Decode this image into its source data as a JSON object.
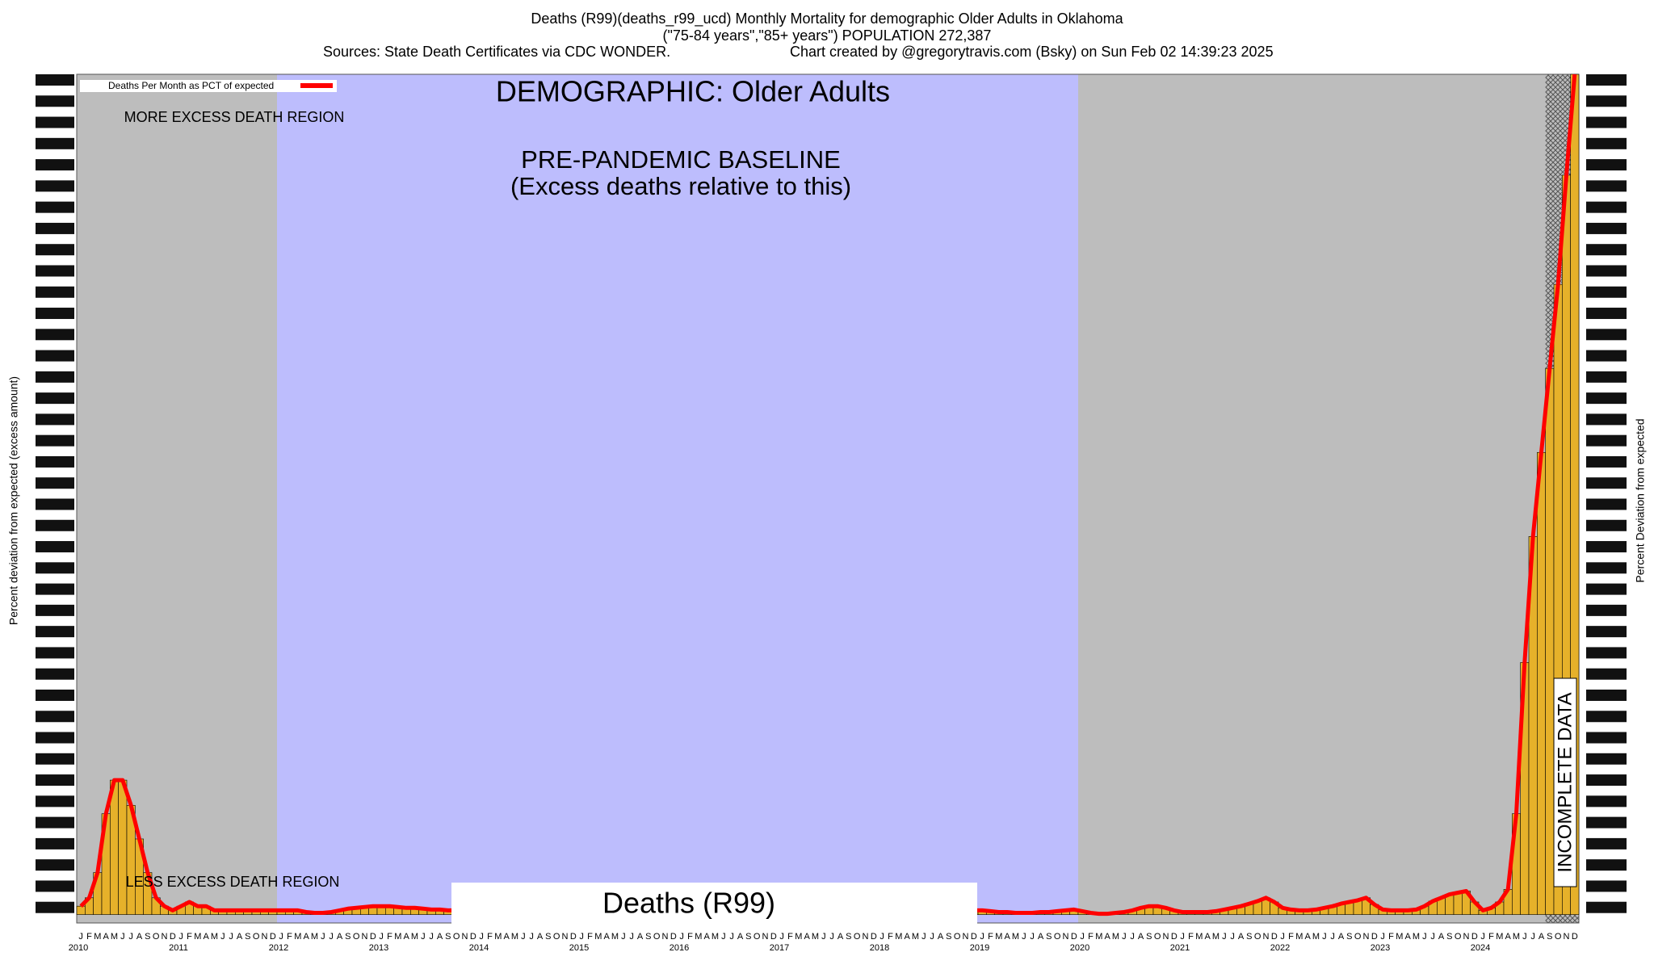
{
  "chart_data": {
    "type": "bar",
    "title": "Deaths (R99)(deaths_r99_ucd) Monthly Mortality for demographic Older Adults in Oklahoma",
    "subtitle": "(\"75-84 years\",\"85+ years\") POPULATION 272,387",
    "sources": "Sources: State Death Certificates via CDC WONDER.",
    "credit": "Chart created by @gregorytravis.com (Bsky) on Sun Feb 02 14:39:23 2025",
    "demographic": "DEMOGRAPHIC: Older Adults",
    "more_region": "MORE EXCESS DEATH REGION",
    "less_region": "LESS EXCESS DEATH REGION",
    "baseline_title": "PRE-PANDEMIC BASELINE",
    "baseline_note": "(Excess deaths relative to this)",
    "cause": "Deaths (R99)",
    "incomplete": "INCOMPLETE DATA",
    "y_label": "Percent deviation from expected (excess amount)",
    "y2_label": "Percent Deviation from expected",
    "year_labels": [
      "2010",
      "2011",
      "2012",
      "2013",
      "2014",
      "2015",
      "2016",
      "2017",
      "2018",
      "2019",
      "2020",
      "2021",
      "2022",
      "2023",
      "2024"
    ],
    "categories": [
      "J",
      "F",
      "M",
      "A",
      "M",
      "J",
      "J",
      "A",
      "S",
      "O",
      "N",
      "D",
      "J",
      "F",
      "M",
      "A",
      "M",
      "J",
      "J",
      "A",
      "S",
      "O",
      "N",
      "D",
      "J",
      "F",
      "M",
      "A",
      "M",
      "J",
      "J",
      "A",
      "S",
      "O",
      "N",
      "D",
      "J",
      "F",
      "M",
      "A",
      "M",
      "J",
      "J",
      "A",
      "S",
      "O",
      "N",
      "D",
      "J",
      "F",
      "M",
      "A",
      "M",
      "J",
      "J",
      "A",
      "S",
      "O",
      "N",
      "D",
      "J",
      "F",
      "M",
      "A",
      "M",
      "J",
      "J",
      "A",
      "S",
      "O",
      "N",
      "D",
      "J",
      "F",
      "M",
      "A",
      "M",
      "J",
      "J",
      "A",
      "S",
      "O",
      "N",
      "D",
      "J",
      "F",
      "M",
      "A",
      "M",
      "J",
      "J",
      "A",
      "S",
      "O",
      "N",
      "D",
      "J",
      "F",
      "M",
      "A",
      "M",
      "J",
      "J",
      "A",
      "S",
      "O",
      "N",
      "D",
      "J",
      "F",
      "M",
      "A",
      "M",
      "J",
      "J",
      "A",
      "S",
      "O",
      "N",
      "D",
      "J",
      "F",
      "M",
      "A",
      "M",
      "J",
      "J",
      "A",
      "S",
      "O",
      "N",
      "D",
      "J",
      "F",
      "M",
      "A",
      "M",
      "J",
      "J",
      "A",
      "S",
      "O",
      "N",
      "D",
      "J",
      "F",
      "M",
      "A",
      "M",
      "J",
      "J",
      "A",
      "S",
      "O",
      "N",
      "D",
      "J",
      "F",
      "M",
      "A",
      "M",
      "J",
      "J",
      "A",
      "S",
      "O",
      "N",
      "D",
      "J",
      "F",
      "M",
      "A",
      "M",
      "J",
      "J",
      "A",
      "S",
      "O",
      "N",
      "D"
    ],
    "series": [
      {
        "name": "Deaths Per Month as PCT of expected",
        "color": "#ff0000",
        "bar_color": "#e6b12a",
        "values": [
          1,
          2,
          5,
          12,
          16,
          16,
          13,
          9,
          5,
          2,
          1,
          0.5,
          1,
          1.5,
          1,
          1,
          0.5,
          0.5,
          0.5,
          0.5,
          0.5,
          0.5,
          0.5,
          0.5,
          0.5,
          0.5,
          0.5,
          0.3,
          0.2,
          0.2,
          0.3,
          0.5,
          0.7,
          0.8,
          0.9,
          1,
          1,
          1,
          0.9,
          0.8,
          0.8,
          0.7,
          0.6,
          0.6,
          0.5,
          0.5,
          0.4,
          0.3,
          0.2,
          0,
          -0.3,
          -0.3,
          0,
          0.3,
          0.5,
          0.5,
          0.5,
          0.5,
          0.5,
          0.5,
          0.5,
          0.5,
          0.5,
          0.5,
          0.5,
          0.5,
          0.5,
          0.5,
          0.5,
          0.5,
          0.5,
          0.5,
          0.5,
          0.5,
          0.5,
          0.5,
          0.5,
          0.5,
          0.5,
          0.5,
          0.5,
          0.5,
          0.5,
          0.5,
          0.5,
          0.5,
          0.5,
          0.5,
          0.5,
          0.5,
          0.5,
          0.5,
          0.5,
          0.5,
          0.5,
          0.5,
          0.5,
          0.5,
          0.5,
          0.5,
          0.5,
          0.5,
          0.5,
          0.5,
          0.5,
          0.5,
          0.5,
          0.5,
          0.5,
          0.4,
          0.3,
          0.3,
          0.2,
          0.2,
          0.2,
          0.3,
          0.3,
          0.4,
          0.5,
          0.6,
          0.4,
          0.2,
          0.1,
          0.1,
          0.2,
          0.3,
          0.5,
          0.8,
          1,
          1,
          0.8,
          0.5,
          0.3,
          0.3,
          0.3,
          0.3,
          0.4,
          0.6,
          0.8,
          1,
          1.3,
          1.6,
          2,
          1.5,
          0.8,
          0.6,
          0.5,
          0.5,
          0.6,
          0.8,
          1,
          1.3,
          1.5,
          1.7,
          2,
          1.2,
          0.6,
          0.5,
          0.5,
          0.5,
          0.6,
          1,
          1.6,
          2,
          2.4,
          2.6,
          2.8,
          1.5,
          0.5,
          0.8,
          1.5,
          3,
          12,
          30,
          45,
          55,
          65,
          75,
          88,
          100
        ]
      }
    ],
    "ylim": [
      -1,
      100
    ]
  }
}
